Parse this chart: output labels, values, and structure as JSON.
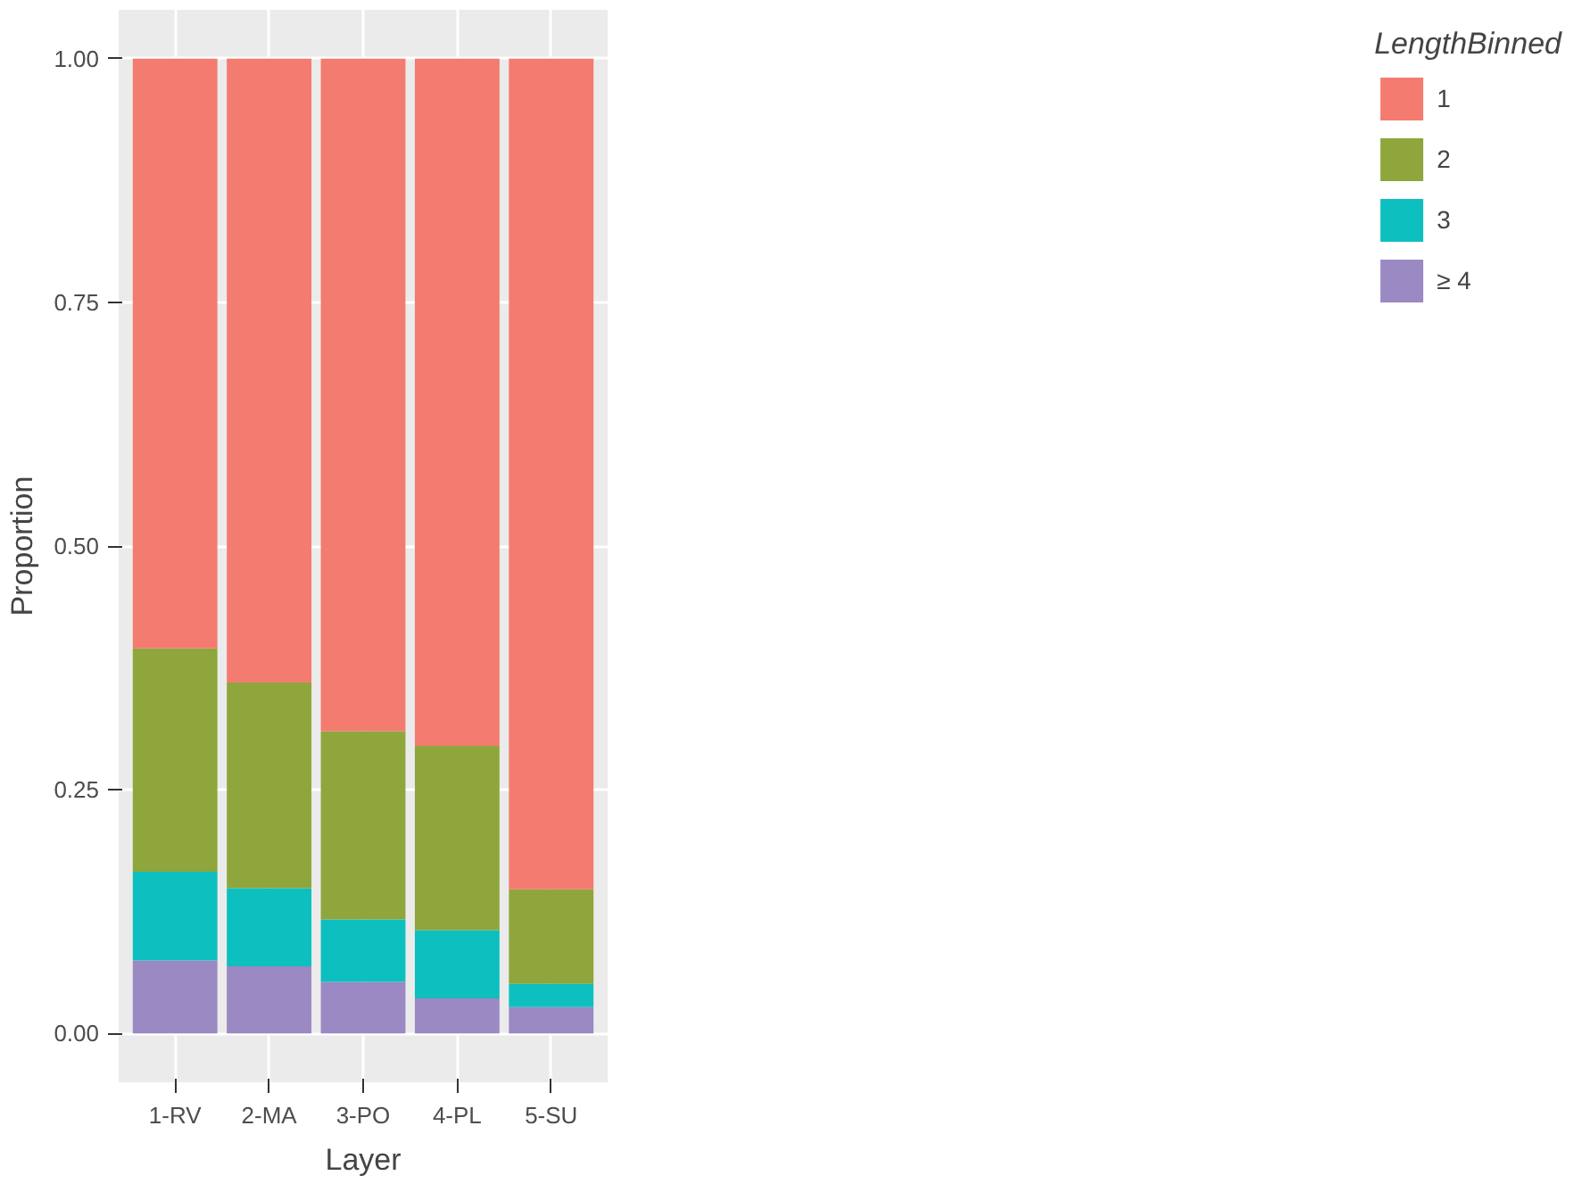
{
  "chart_data": {
    "type": "bar",
    "stacked": true,
    "xlabel": "Layer",
    "ylabel": "Proportion",
    "legend_title": "LengthBinned",
    "categories": [
      "1-RV",
      "2-MA",
      "3-PO",
      "4-PL",
      "5-SU"
    ],
    "series": [
      {
        "name": "≥ 4",
        "color": "#9a89c2",
        "values": [
          0.075,
          0.069,
          0.053,
          0.036,
          0.027
        ]
      },
      {
        "name": "3",
        "color": "#0dbfbf",
        "values": [
          0.091,
          0.08,
          0.064,
          0.07,
          0.024
        ]
      },
      {
        "name": "2",
        "color": "#8ea63c",
        "values": [
          0.229,
          0.211,
          0.193,
          0.189,
          0.097
        ]
      },
      {
        "name": "1",
        "color": "#f47b6f",
        "values": [
          0.605,
          0.64,
          0.69,
          0.705,
          0.852
        ]
      }
    ],
    "ylim": [
      -0.05,
      1.05
    ],
    "yticks": [
      {
        "value": 0,
        "label": "0.00"
      },
      {
        "value": 0.25,
        "label": "0.25"
      },
      {
        "value": 0.5,
        "label": "0.50"
      },
      {
        "value": 0.75,
        "label": "0.75"
      },
      {
        "value": 1,
        "label": "1.00"
      }
    ],
    "grid": true,
    "legend": "right"
  }
}
